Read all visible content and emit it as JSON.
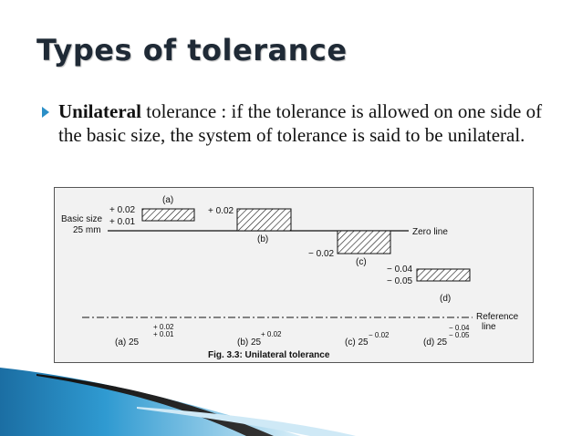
{
  "slide": {
    "title": "Types of tolerance",
    "bullet": {
      "term": "Unilateral",
      "text": " tolerance : if the tolerance is allowed on one side of the basic size, the system of tolerance is said to be unilateral."
    }
  },
  "figure": {
    "caption": "Fig. 3.3: Unilateral tolerance",
    "basic_size_label": "Basic size",
    "basic_size_value": "25 mm",
    "zero_line_label": "Zero line",
    "reference_line_label_1": "Reference",
    "reference_line_label_2": "line",
    "cases": [
      {
        "letter": "(a)",
        "upper": "+ 0.02",
        "lower": "+ 0.01"
      },
      {
        "letter": "(b)",
        "upper": "+ 0.02",
        "lower": ""
      },
      {
        "letter": "(c)",
        "upper": "",
        "lower": "− 0.02"
      },
      {
        "letter": "(d)",
        "upper": "− 0.04",
        "lower": "− 0.05"
      }
    ],
    "notations": [
      {
        "label": "(a) 25",
        "upper": "+ 0.02",
        "lower": "+ 0.01"
      },
      {
        "label": "(b) 25",
        "upper": "+ 0.02",
        "lower": ""
      },
      {
        "label": "(c) 25",
        "upper": "",
        "lower": "− 0.02"
      },
      {
        "label": "(d) 25",
        "upper": "− 0.04",
        "lower": "− 0.05"
      }
    ]
  }
}
